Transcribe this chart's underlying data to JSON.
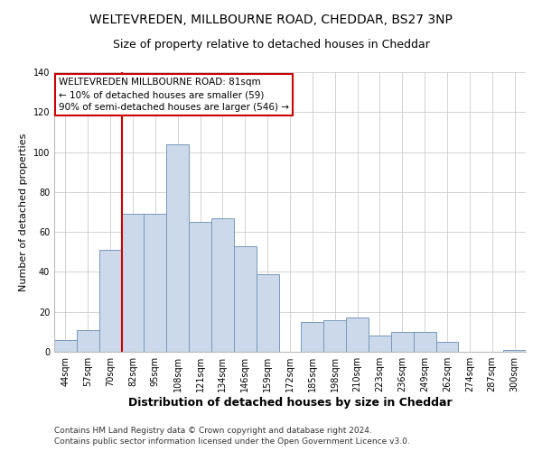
{
  "title": "WELTEVREDEN, MILLBOURNE ROAD, CHEDDAR, BS27 3NP",
  "subtitle": "Size of property relative to detached houses in Cheddar",
  "xlabel": "Distribution of detached houses by size in Cheddar",
  "ylabel": "Number of detached properties",
  "bar_labels": [
    "44sqm",
    "57sqm",
    "70sqm",
    "82sqm",
    "95sqm",
    "108sqm",
    "121sqm",
    "134sqm",
    "146sqm",
    "159sqm",
    "172sqm",
    "185sqm",
    "198sqm",
    "210sqm",
    "223sqm",
    "236sqm",
    "249sqm",
    "262sqm",
    "274sqm",
    "287sqm",
    "300sqm"
  ],
  "bar_values": [
    6,
    11,
    51,
    69,
    69,
    104,
    65,
    67,
    53,
    39,
    0,
    15,
    16,
    17,
    8,
    10,
    10,
    5,
    0,
    0,
    1
  ],
  "bar_color": "#ccd9ea",
  "bar_edge_color": "#7799bb",
  "vline_x_index": 3,
  "vline_color": "#cc0000",
  "ylim": [
    0,
    140
  ],
  "yticks": [
    0,
    20,
    40,
    60,
    80,
    100,
    120,
    140
  ],
  "annotation_title": "WELTEVREDEN MILLBOURNE ROAD: 81sqm",
  "annotation_line1": "← 10% of detached houses are smaller (59)",
  "annotation_line2": "90% of semi-detached houses are larger (546) →",
  "annotation_box_color": "#ffffff",
  "annotation_box_edge": "#cc0000",
  "footer1": "Contains HM Land Registry data © Crown copyright and database right 2024.",
  "footer2": "Contains public sector information licensed under the Open Government Licence v3.0.",
  "background_color": "#ffffff",
  "plot_background": "#ffffff",
  "grid_color": "#cccccc",
  "title_fontsize": 10,
  "subtitle_fontsize": 9,
  "tick_fontsize": 7,
  "ylabel_fontsize": 8,
  "xlabel_fontsize": 9,
  "footer_fontsize": 6.5
}
